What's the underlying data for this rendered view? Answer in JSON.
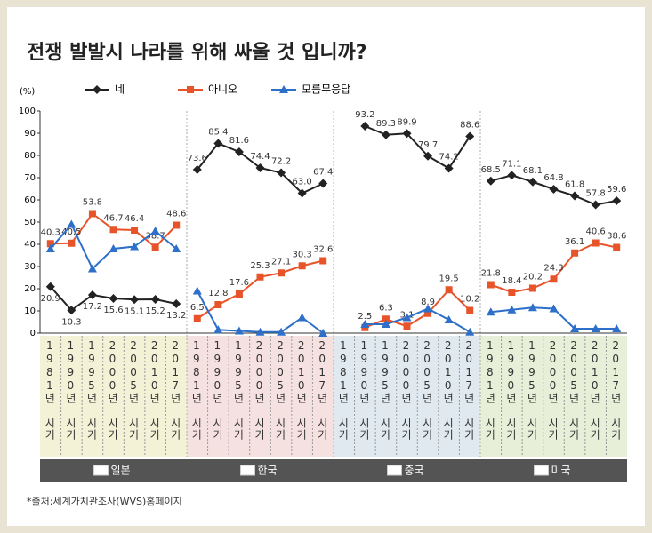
{
  "chart_data": {
    "type": "line",
    "title": "전쟁 발발시 나라를 위해 싸울 것 입니까?",
    "y_label": "(%)",
    "source": "*출처:세계가치관조사(WVS)홈페이지",
    "ylim": [
      0,
      100
    ],
    "yticks": [
      0,
      10,
      20,
      30,
      40,
      50,
      60,
      70,
      80,
      90,
      100
    ],
    "categories": [
      "1981년 시기",
      "1990년 시기",
      "1995년 시기",
      "2000년 시기",
      "2005년 시기",
      "2010년 시기",
      "2017년 시기"
    ],
    "series": [
      {
        "name": "네",
        "color": "#222222",
        "marker": "diamond"
      },
      {
        "name": "아니오",
        "color": "#e8542a",
        "marker": "square"
      },
      {
        "name": "모름무응답",
        "color": "#2d6fc9",
        "marker": "triangle"
      }
    ],
    "panels": [
      {
        "name": "일본",
        "color": "#f4f2d6",
        "values": [
          [
            20.9,
            10.3,
            17.2,
            15.6,
            15.1,
            15.2,
            13.2
          ],
          [
            40.3,
            40.5,
            53.8,
            46.7,
            46.4,
            38.7,
            48.6
          ],
          [
            38,
            49,
            29,
            38,
            39,
            46,
            38
          ]
        ]
      },
      {
        "name": "한국",
        "color": "#f6e1e1",
        "values": [
          [
            73.6,
            85.4,
            81.6,
            74.4,
            72.2,
            63,
            67.4
          ],
          [
            6.5,
            12.8,
            17.6,
            25.3,
            27.1,
            30.3,
            32.6
          ],
          [
            19,
            1.5,
            1,
            0.5,
            0.5,
            7,
            0
          ]
        ],
        "value_labels": [
          [
            "73.6",
            "85.4",
            "81.6",
            "74.4",
            "72.2",
            "63.0",
            "67.4"
          ],
          null,
          null
        ]
      },
      {
        "name": "중국",
        "color": "#dfe9ef",
        "values": [
          [
            null,
            93.2,
            89.3,
            89.9,
            79.7,
            74.2,
            88.6
          ],
          [
            null,
            2.5,
            6.3,
            3.1,
            8.9,
            19.5,
            10.2
          ],
          [
            null,
            4,
            4,
            7,
            11,
            6,
            0.5
          ]
        ]
      },
      {
        "name": "미국",
        "color": "#e7efd8",
        "values": [
          [
            68.5,
            71.1,
            68.1,
            64.8,
            61.8,
            57.8,
            59.6
          ],
          [
            21.8,
            18.4,
            20.2,
            24.3,
            36.1,
            40.6,
            38.6
          ],
          [
            9.5,
            10.5,
            11.5,
            11,
            2,
            2,
            2
          ]
        ]
      }
    ]
  }
}
